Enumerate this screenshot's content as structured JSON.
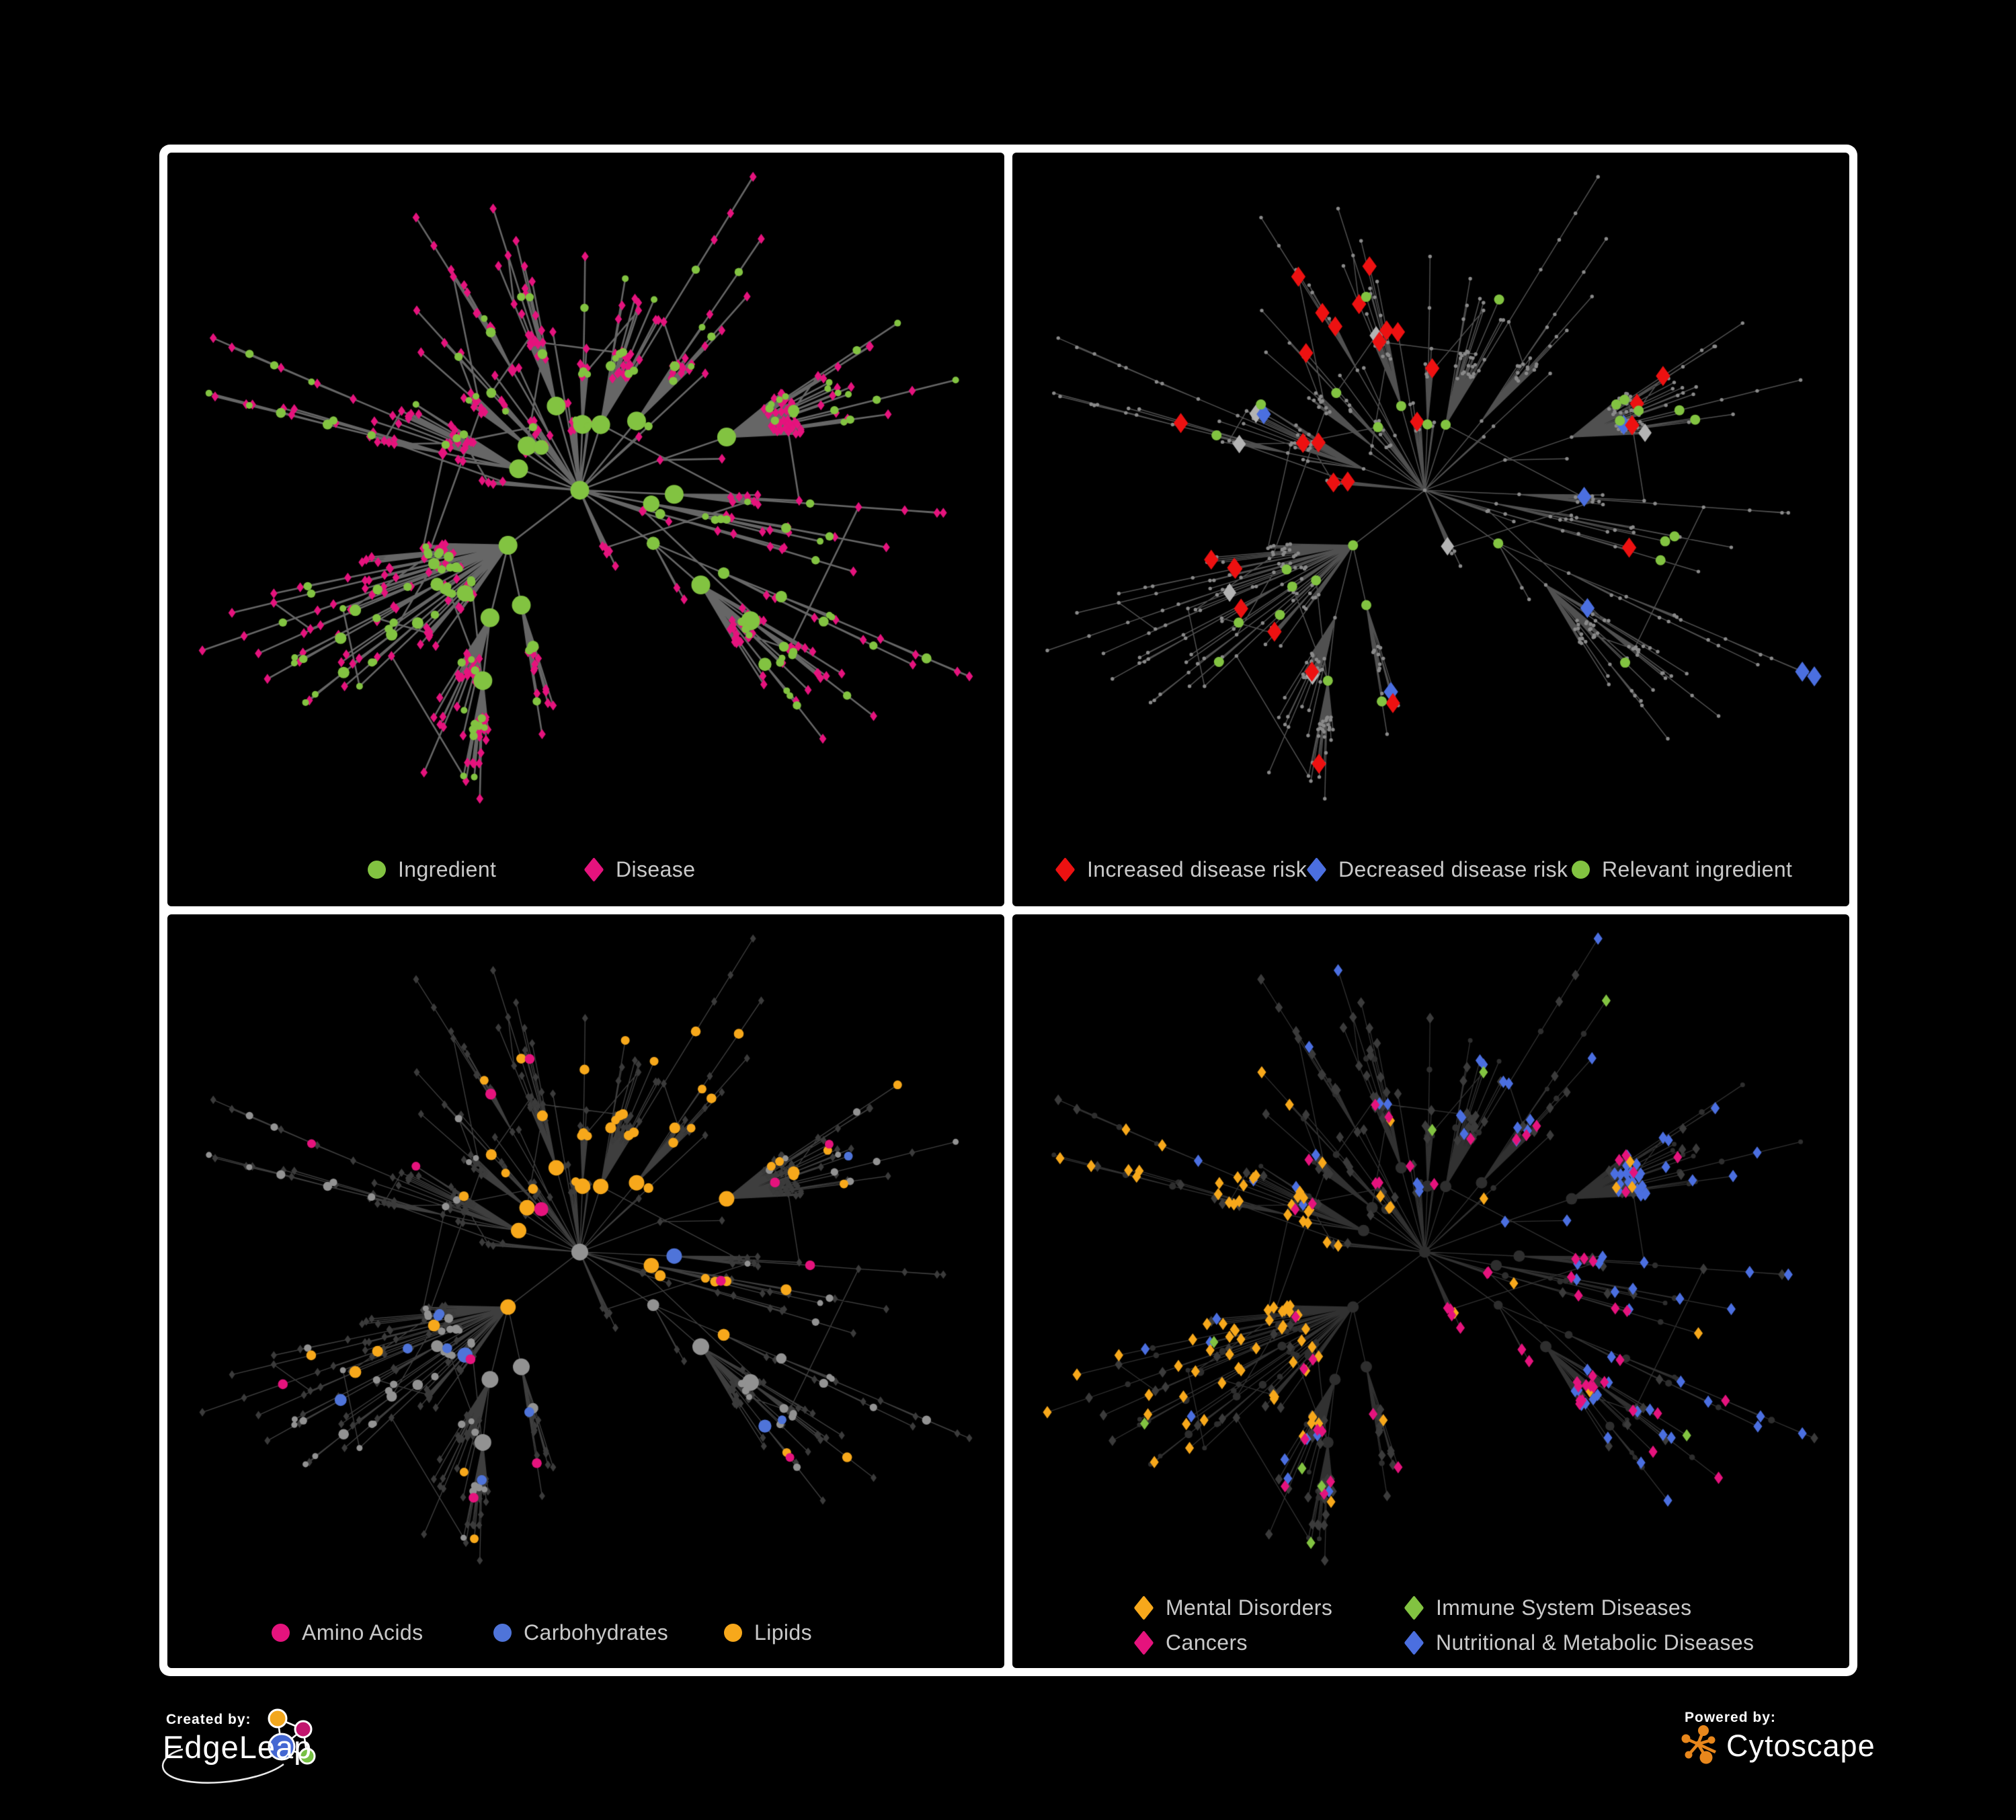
{
  "figure": {
    "background": "#000000",
    "frame_color": "#ffffff"
  },
  "panels": [
    {
      "name": "ingredient-disease-network",
      "legend": [
        {
          "label": "Ingredient",
          "shape": "circle",
          "color": "#82c341"
        },
        {
          "label": "Disease",
          "shape": "diamond",
          "color": "#e5137d"
        }
      ]
    },
    {
      "name": "disease-risk-network",
      "legend": [
        {
          "label": "Increased disease risk",
          "shape": "diamond",
          "color": "#ed1111"
        },
        {
          "label": "Decreased disease risk",
          "shape": "diamond",
          "color": "#4b6fe0"
        },
        {
          "label": "Relevant ingredient",
          "shape": "circle",
          "color": "#82c341"
        }
      ]
    },
    {
      "name": "nutrient-class-network",
      "legend": [
        {
          "label": "Amino Acids",
          "shape": "circle",
          "color": "#e5137d"
        },
        {
          "label": "Carbohydrates",
          "shape": "circle",
          "color": "#4f74d9"
        },
        {
          "label": "Lipids",
          "shape": "circle",
          "color": "#f7a81b"
        }
      ]
    },
    {
      "name": "disease-class-network",
      "legend": [
        {
          "label": "Mental Disorders",
          "shape": "diamond",
          "color": "#f7a81b"
        },
        {
          "label": "Immune System Diseases",
          "shape": "diamond",
          "color": "#82c341"
        },
        {
          "label": "Cancers",
          "shape": "diamond",
          "color": "#e5137d"
        },
        {
          "label": "Nutritional & Metabolic Diseases",
          "shape": "diamond",
          "color": "#4b6fe0"
        }
      ]
    }
  ],
  "branding": {
    "created_by_label": "Created by:",
    "created_by_name": "EdgeLeap",
    "powered_by_label": "Powered by:",
    "powered_by_name": "Cytoscape",
    "cytoscape_orange": "#e8871c",
    "edgeleap_node_colors": [
      "#f2a71e",
      "#c2156e",
      "#4467d2",
      "#76c043"
    ]
  },
  "network_render": {
    "seed": 11,
    "node_count": 620,
    "extra_edges": 36,
    "colors": {
      "edge": [
        "#6c6c6c",
        "#5e5e5e",
        "#686868",
        "#5a5a5a"
      ],
      "edge_alpha": [
        0.95,
        0.85,
        0.6,
        0.55
      ],
      "edge_width": [
        2.6,
        1.5,
        1.4,
        1.3
      ],
      "base_dot": "#8a8a8a",
      "gray_diamond": "#b3b3b3",
      "dark_diamond": "#3b3b3b",
      "dark_circle": "#2e2e2e",
      "ingredient_gray": "#929292",
      "green": "#82c341",
      "pink": "#e5137d",
      "red": "#ed1111",
      "blue": "#4b6fe0",
      "carb_blue": "#4f74d9",
      "orange": "#f7a81b"
    },
    "highlight_counts": {
      "increased_risk": 28,
      "decreased_risk": 7,
      "unchanged_gray": 7,
      "relevant_ingredient": 30,
      "lipids": 58,
      "carbohydrates": 12,
      "amino_acids": 14,
      "mental": 94,
      "cancers": 60,
      "nutritional": 95,
      "immune": 9
    }
  }
}
